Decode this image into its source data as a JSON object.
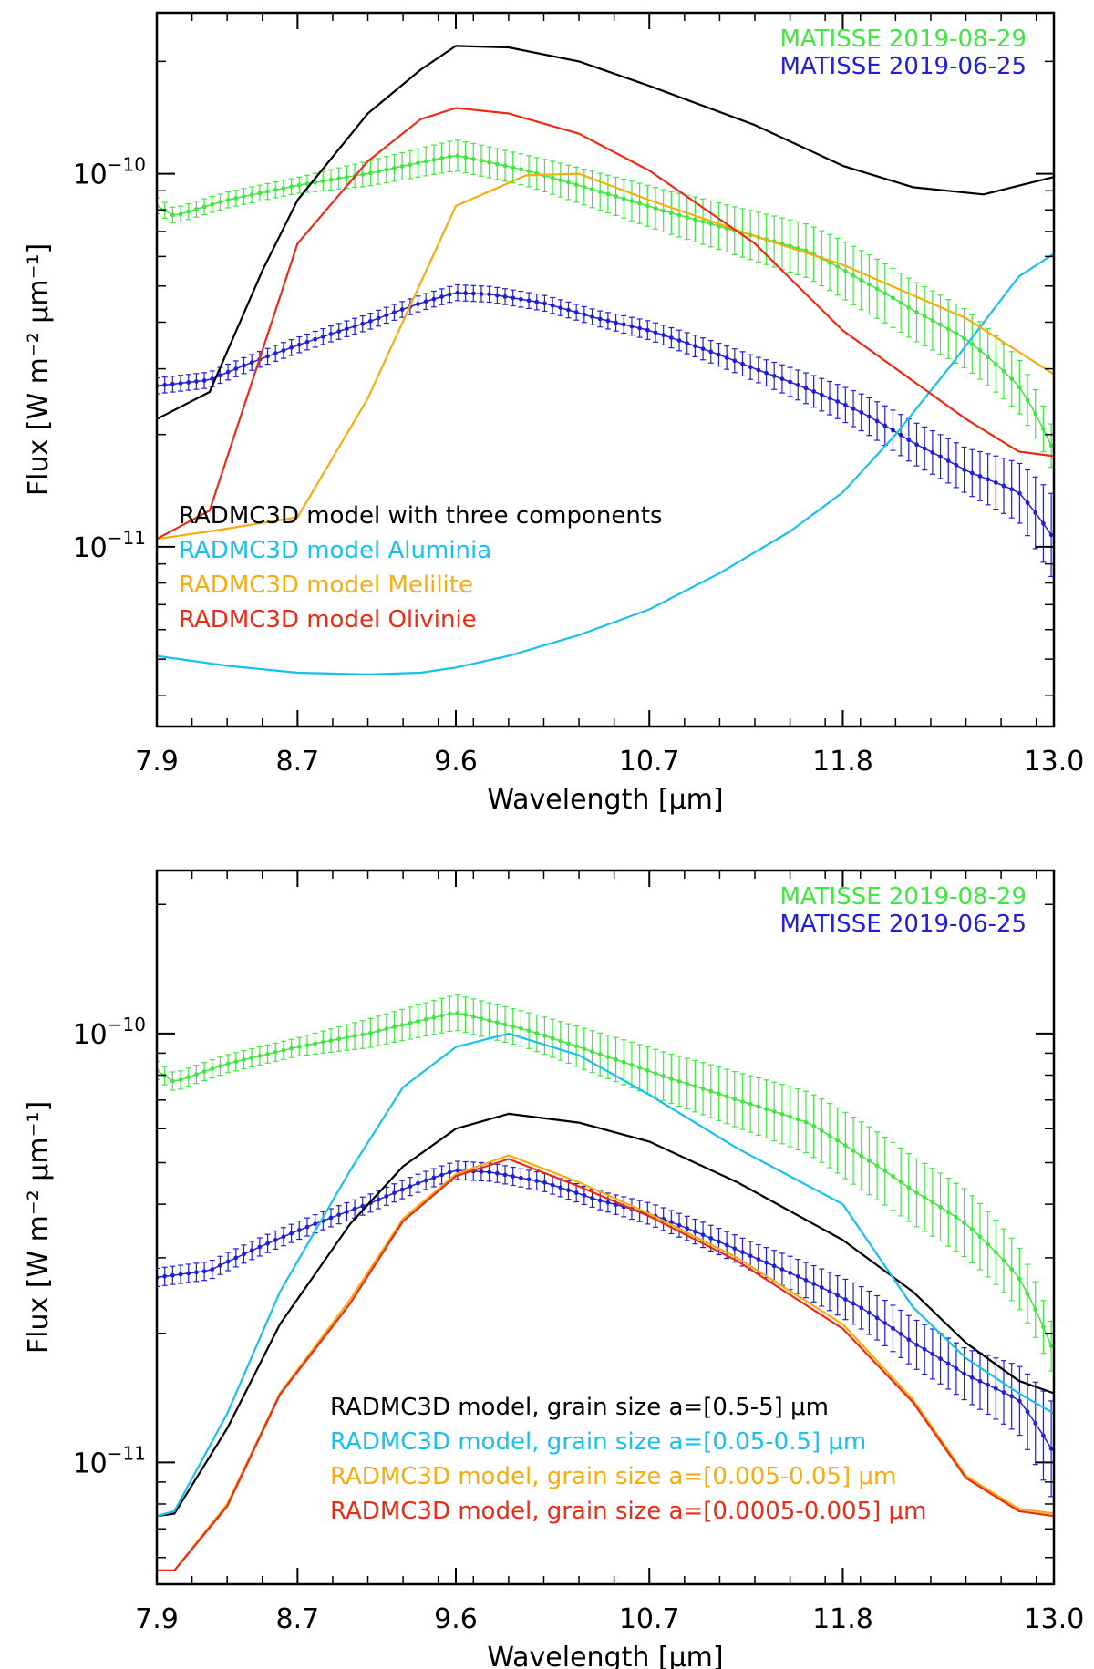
{
  "chart_data": [
    {
      "type": "line",
      "id": "top",
      "xlabel": "Wavelength [μm]",
      "ylabel": "Flux [W m⁻² μm⁻¹]",
      "ylog": true,
      "xlim": [
        7.9,
        13.0
      ],
      "ylim": [
        3.3e-12,
        2.7e-10
      ],
      "xticks": [
        {
          "value": 7.9,
          "label": "7.9"
        },
        {
          "value": 8.7,
          "label": "8.7"
        },
        {
          "value": 9.6,
          "label": "9.6"
        },
        {
          "value": 10.7,
          "label": "10.7"
        },
        {
          "value": 11.8,
          "label": "11.8"
        },
        {
          "value": 13.0,
          "label": "13.0"
        }
      ],
      "yticks_major": [
        {
          "value": 1e-11,
          "base": "10",
          "exp": "−11"
        },
        {
          "value": 1e-10,
          "base": "10",
          "exp": "−10"
        }
      ],
      "series": [
        {
          "name": "MATISSE 2019-08-29",
          "color": "#3fe83f",
          "errorbars": true,
          "x": [
            7.9,
            8.0,
            8.3,
            8.7,
            9.1,
            9.6,
            10.0,
            10.4,
            10.8,
            11.2,
            11.6,
            11.9,
            12.2,
            12.5,
            12.8,
            13.0
          ],
          "y": [
            8.2e-11,
            7.7e-11,
            8.5e-11,
            9.3e-11,
            1e-10,
            1.12e-10,
            1.02e-10,
            9e-11,
            7.9e-11,
            7e-11,
            6.2e-11,
            5.2e-11,
            4.3e-11,
            3.6e-11,
            2.7e-11,
            1.8e-11
          ],
          "err": [
            0.05,
            0.05,
            0.05,
            0.05,
            0.08,
            0.1,
            0.1,
            0.12,
            0.14,
            0.16,
            0.18,
            0.2,
            0.2,
            0.2,
            0.18,
            0.14
          ]
        },
        {
          "name": "MATISSE 2019-06-25",
          "color": "#1e1edb",
          "errorbars": true,
          "x": [
            7.9,
            8.2,
            8.5,
            8.8,
            9.1,
            9.4,
            9.6,
            9.8,
            10.1,
            10.4,
            10.7,
            11.0,
            11.3,
            11.6,
            11.9,
            12.2,
            12.5,
            12.8,
            13.0
          ],
          "y": [
            2.7e-11,
            2.8e-11,
            3.2e-11,
            3.6e-11,
            4e-11,
            4.5e-11,
            4.8e-11,
            4.75e-11,
            4.5e-11,
            4.1e-11,
            3.8e-11,
            3.4e-11,
            3e-11,
            2.65e-11,
            2.3e-11,
            1.9e-11,
            1.6e-11,
            1.4e-11,
            1.05e-11
          ],
          "err": [
            0.05,
            0.05,
            0.05,
            0.05,
            0.05,
            0.05,
            0.05,
            0.05,
            0.05,
            0.05,
            0.06,
            0.07,
            0.08,
            0.1,
            0.12,
            0.14,
            0.15,
            0.2,
            0.3
          ]
        },
        {
          "name": "RADMC3D model with three components",
          "color": "#000000",
          "x": [
            7.9,
            8.2,
            8.5,
            8.7,
            9.1,
            9.4,
            9.6,
            9.9,
            10.3,
            10.7,
            11.3,
            11.8,
            12.2,
            12.6,
            13.0
          ],
          "y": [
            2.2e-11,
            2.6e-11,
            5.5e-11,
            8.5e-11,
            1.45e-10,
            1.9e-10,
            2.2e-10,
            2.18e-10,
            2e-10,
            1.72e-10,
            1.35e-10,
            1.05e-10,
            9.2e-11,
            8.8e-11,
            9.8e-11
          ]
        },
        {
          "name": "RADMC3D model Aluminia",
          "color": "#18c0ec",
          "x": [
            7.9,
            8.3,
            8.7,
            9.1,
            9.4,
            9.6,
            9.9,
            10.3,
            10.7,
            11.1,
            11.5,
            11.8,
            12.1,
            12.4,
            12.8,
            13.0
          ],
          "y": [
            5.1e-12,
            4.8e-12,
            4.6e-12,
            4.55e-12,
            4.6e-12,
            4.75e-12,
            5.1e-12,
            5.8e-12,
            6.8e-12,
            8.5e-12,
            1.1e-11,
            1.4e-11,
            2e-11,
            3e-11,
            5.3e-11,
            6.1e-11
          ]
        },
        {
          "name": "RADMC3D model Melilite",
          "color": "#f5ac10",
          "x": [
            7.9,
            8.2,
            8.7,
            9.1,
            9.6,
            10.0,
            10.3,
            10.7,
            11.3,
            11.8,
            12.5,
            13.0
          ],
          "y": [
            1.05e-11,
            1.1e-11,
            1.2e-11,
            2.5e-11,
            8.2e-11,
            9.9e-11,
            1e-10,
            8.5e-11,
            6.8e-11,
            5.7e-11,
            4.1e-11,
            2.9e-11
          ]
        },
        {
          "name": "RADMC3D model Olivinie",
          "color": "#ed2a14",
          "x": [
            7.9,
            8.2,
            8.7,
            9.1,
            9.4,
            9.6,
            9.9,
            10.3,
            10.7,
            11.3,
            11.8,
            12.5,
            12.8,
            13.0
          ],
          "y": [
            1.05e-11,
            1.25e-11,
            6.5e-11,
            1.08e-10,
            1.4e-10,
            1.5e-10,
            1.45e-10,
            1.28e-10,
            1.02e-10,
            6.5e-11,
            3.8e-11,
            2.2e-11,
            1.8e-11,
            1.75e-11
          ]
        }
      ],
      "legend": {
        "top_right": [
          "MATISSE 2019-08-29",
          "MATISSE 2019-06-25"
        ],
        "bottom_left": [
          "RADMC3D model with three components",
          "RADMC3D model Aluminia",
          "RADMC3D model Melilite",
          "RADMC3D model Olivinie"
        ]
      }
    },
    {
      "type": "line",
      "id": "bottom",
      "xlabel": "Wavelength [μm]",
      "ylabel": "Flux [W m⁻² μm⁻¹]",
      "ylog": true,
      "xlim": [
        7.9,
        13.0
      ],
      "ylim": [
        5.2e-12,
        2.4e-10
      ],
      "xticks": [
        {
          "value": 7.9,
          "label": "7.9"
        },
        {
          "value": 8.7,
          "label": "8.7"
        },
        {
          "value": 9.6,
          "label": "9.6"
        },
        {
          "value": 10.7,
          "label": "10.7"
        },
        {
          "value": 11.8,
          "label": "11.8"
        },
        {
          "value": 13.0,
          "label": "13.0"
        }
      ],
      "yticks_major": [
        {
          "value": 1e-11,
          "base": "10",
          "exp": "−11"
        },
        {
          "value": 1e-10,
          "base": "10",
          "exp": "−10"
        }
      ],
      "series": [
        {
          "name": "MATISSE 2019-08-29",
          "color": "#3fe83f",
          "errorbars": true,
          "x": [
            7.9,
            8.0,
            8.3,
            8.7,
            9.1,
            9.6,
            10.0,
            10.4,
            10.8,
            11.2,
            11.6,
            11.9,
            12.2,
            12.5,
            12.8,
            13.0
          ],
          "y": [
            8.2e-11,
            7.7e-11,
            8.5e-11,
            9.3e-11,
            1e-10,
            1.12e-10,
            1.02e-10,
            9e-11,
            7.9e-11,
            7e-11,
            6.2e-11,
            5.2e-11,
            4.3e-11,
            3.6e-11,
            2.7e-11,
            1.8e-11
          ],
          "err": [
            0.05,
            0.05,
            0.05,
            0.05,
            0.08,
            0.1,
            0.1,
            0.12,
            0.14,
            0.16,
            0.18,
            0.2,
            0.2,
            0.2,
            0.18,
            0.14
          ]
        },
        {
          "name": "MATISSE 2019-06-25",
          "color": "#1e1edb",
          "errorbars": true,
          "x": [
            7.9,
            8.2,
            8.5,
            8.8,
            9.1,
            9.4,
            9.6,
            9.8,
            10.1,
            10.4,
            10.7,
            11.0,
            11.3,
            11.6,
            11.9,
            12.2,
            12.5,
            12.8,
            13.0
          ],
          "y": [
            2.7e-11,
            2.8e-11,
            3.2e-11,
            3.6e-11,
            4e-11,
            4.5e-11,
            4.8e-11,
            4.75e-11,
            4.5e-11,
            4.1e-11,
            3.8e-11,
            3.4e-11,
            3e-11,
            2.65e-11,
            2.3e-11,
            1.9e-11,
            1.6e-11,
            1.4e-11,
            1.05e-11
          ],
          "err": [
            0.05,
            0.05,
            0.05,
            0.05,
            0.05,
            0.05,
            0.05,
            0.05,
            0.05,
            0.05,
            0.06,
            0.07,
            0.08,
            0.1,
            0.12,
            0.14,
            0.15,
            0.2,
            0.3
          ]
        },
        {
          "name": "RADMC3D model, grain size a=[0.5-5] μm",
          "color": "#000000",
          "x": [
            7.9,
            8.0,
            8.3,
            8.6,
            9.0,
            9.3,
            9.6,
            9.9,
            10.3,
            10.7,
            11.2,
            11.8,
            12.2,
            12.5,
            12.8,
            13.0
          ],
          "y": [
            7.5e-12,
            7.6e-12,
            1.2e-11,
            2.1e-11,
            3.6e-11,
            4.9e-11,
            6e-11,
            6.5e-11,
            6.2e-11,
            5.6e-11,
            4.5e-11,
            3.3e-11,
            2.5e-11,
            1.9e-11,
            1.55e-11,
            1.45e-11
          ]
        },
        {
          "name": "RADMC3D model, grain size a=[0.05-0.5] μm",
          "color": "#18c0ec",
          "x": [
            7.9,
            8.0,
            8.3,
            8.6,
            9.0,
            9.3,
            9.6,
            9.9,
            10.3,
            10.7,
            11.2,
            11.8,
            12.2,
            12.5,
            12.8,
            13.0
          ],
          "y": [
            7.5e-12,
            7.7e-12,
            1.3e-11,
            2.5e-11,
            4.8e-11,
            7.5e-11,
            9.3e-11,
            1e-10,
            8.9e-11,
            7.2e-11,
            5.4e-11,
            4e-11,
            2.3e-11,
            1.75e-11,
            1.45e-11,
            1.3e-11
          ]
        },
        {
          "name": "RADMC3D model, grain size a=[0.005-0.05] μm",
          "color": "#f5ac10",
          "x": [
            7.9,
            8.0,
            8.3,
            8.6,
            9.0,
            9.3,
            9.6,
            9.9,
            10.3,
            10.7,
            11.2,
            11.8,
            12.2,
            12.5,
            12.8,
            13.0
          ],
          "y": [
            5.6e-12,
            5.6e-12,
            8e-12,
            1.45e-11,
            2.4e-11,
            3.7e-11,
            4.7e-11,
            5.2e-11,
            4.5e-11,
            3.8e-11,
            3e-11,
            2.1e-11,
            1.4e-11,
            9.3e-12,
            7.8e-12,
            7.6e-12
          ]
        },
        {
          "name": "RADMC3D model, grain size a=[0.0005-0.005] μm",
          "color": "#ed2a14",
          "x": [
            7.9,
            8.0,
            8.3,
            8.6,
            9.0,
            9.3,
            9.6,
            9.9,
            10.3,
            10.7,
            11.2,
            11.8,
            12.2,
            12.5,
            12.8,
            13.0
          ],
          "y": [
            5.6e-12,
            5.6e-12,
            7.9e-12,
            1.44e-11,
            2.35e-11,
            3.65e-11,
            4.65e-11,
            5.1e-11,
            4.4e-11,
            3.75e-11,
            2.95e-11,
            2.05e-11,
            1.38e-11,
            9.2e-12,
            7.7e-12,
            7.5e-12
          ]
        }
      ],
      "legend": {
        "top_right": [
          "MATISSE 2019-08-29",
          "MATISSE 2019-06-25"
        ],
        "bottom_left": [
          "RADMC3D model, grain size a=[0.5-5] μm",
          "RADMC3D model, grain size a=[0.05-0.5] μm",
          "RADMC3D model, grain size a=[0.005-0.05] μm",
          "RADMC3D model, grain size a=[0.0005-0.005] μm"
        ]
      }
    }
  ]
}
